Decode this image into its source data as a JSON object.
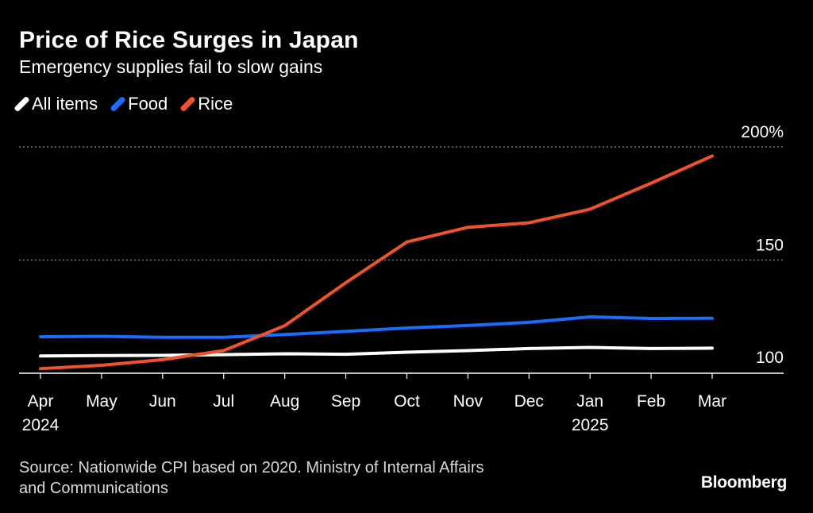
{
  "header": {
    "title": "Price of Rice Surges in Japan",
    "subtitle": "Emergency supplies fail to slow gains"
  },
  "legend": [
    {
      "label": "All items",
      "color": "#ffffff"
    },
    {
      "label": "Food",
      "color": "#1a6cff"
    },
    {
      "label": "Rice",
      "color": "#f0522b"
    }
  ],
  "footer": {
    "source_line1": "Source: Nationwide CPI based on 2020. Ministry of Internal Affairs",
    "source_line2": "and Communications",
    "brand": "Bloomberg"
  },
  "chart_data": {
    "type": "line",
    "title": "Price of Rice Surges in Japan",
    "subtitle": "Emergency supplies fail to slow gains",
    "categories": [
      "Apr",
      "May",
      "Jun",
      "Jul",
      "Aug",
      "Sep",
      "Oct",
      "Nov",
      "Dec",
      "Jan",
      "Feb",
      "Mar"
    ],
    "year_labels": [
      {
        "index": 0,
        "label": "2024"
      },
      {
        "index": 9,
        "label": "2025"
      }
    ],
    "series": [
      {
        "name": "All items",
        "color": "#ffffff",
        "values": [
          107.6,
          107.8,
          107.9,
          108.2,
          108.6,
          108.4,
          109.3,
          110.0,
          110.9,
          111.4,
          110.9,
          111.1
        ]
      },
      {
        "name": "Food",
        "color": "#1a6cff",
        "values": [
          116.1,
          116.3,
          115.9,
          115.9,
          117.1,
          118.5,
          120.0,
          121.1,
          122.5,
          124.9,
          124.2,
          124.3
        ]
      },
      {
        "name": "Rice",
        "color": "#f0522b",
        "values": [
          102.0,
          103.5,
          106.0,
          110.0,
          121.0,
          140.0,
          158.0,
          164.5,
          166.5,
          172.5,
          184.0,
          196.0
        ]
      }
    ],
    "ylim": [
      100,
      200
    ],
    "yticks": [
      {
        "value": 100,
        "label": "100"
      },
      {
        "value": 150,
        "label": "150"
      },
      {
        "value": 200,
        "label": "200%"
      }
    ],
    "grid": true,
    "legend_position": "top-left"
  }
}
